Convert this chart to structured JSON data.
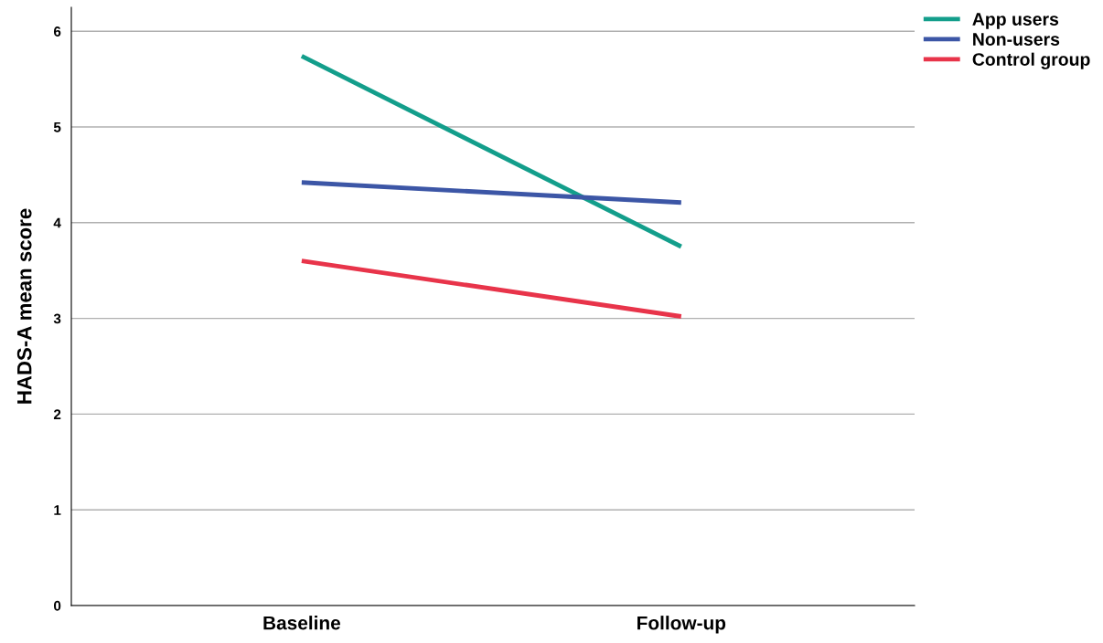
{
  "chart_data": {
    "type": "line",
    "ylabel": "HADS-A mean score",
    "categories": [
      "Baseline",
      "Follow-up"
    ],
    "series": [
      {
        "name": "App users",
        "color": "#139e8b",
        "values": [
          5.74,
          3.75
        ]
      },
      {
        "name": "Non-users",
        "color": "#3c56a6",
        "values": [
          4.42,
          4.21
        ]
      },
      {
        "name": "Control group",
        "color": "#e8344a",
        "values": [
          3.6,
          3.02
        ]
      }
    ],
    "ylim": [
      0,
      6.25
    ],
    "yticks": [
      0,
      1,
      2,
      3,
      4,
      5,
      6
    ],
    "grid": "y",
    "legend": "top right",
    "marker": "none",
    "line_style": "solid"
  }
}
